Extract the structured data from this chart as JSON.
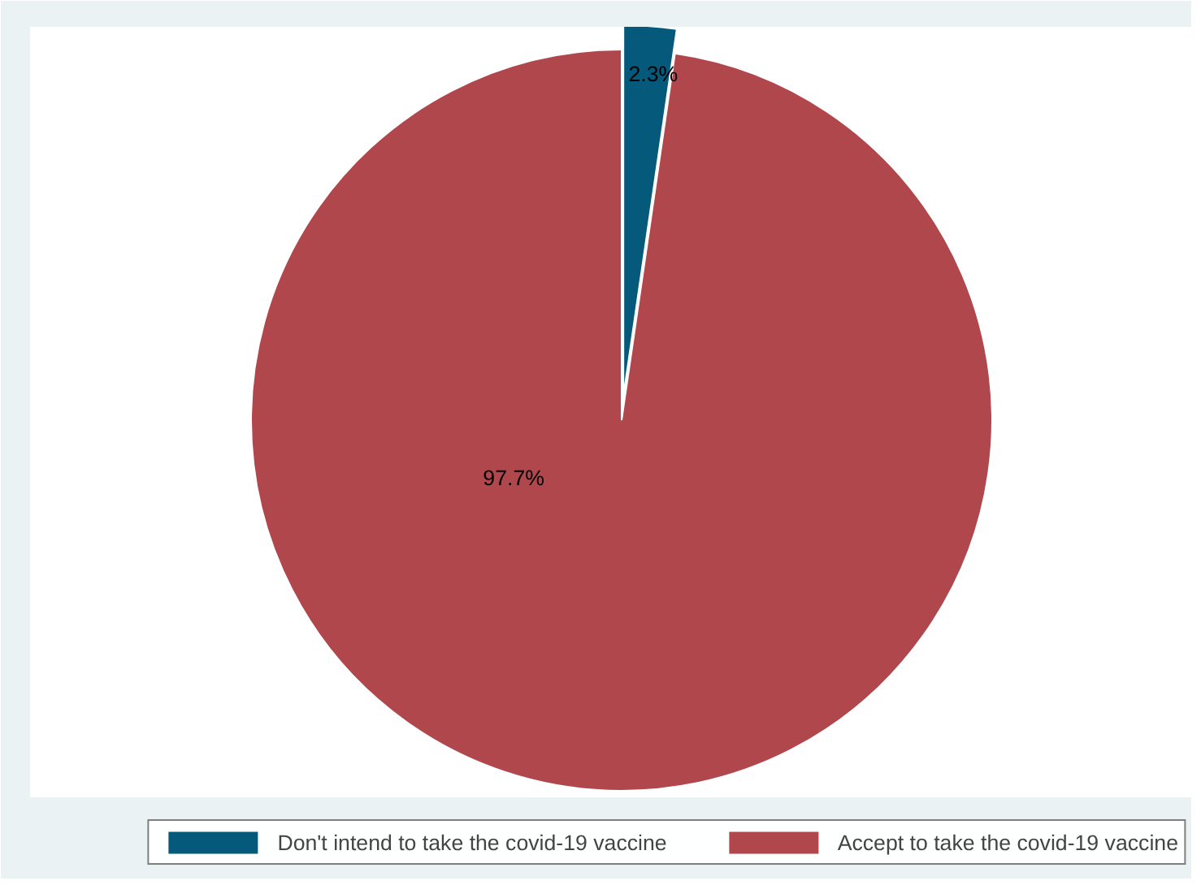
{
  "chart_data": {
    "type": "pie",
    "categories": [
      "Don't intend to take the covid-19 vaccine",
      "Accept to take the covid-19 vaccine"
    ],
    "values": [
      2.3,
      97.7
    ],
    "colors": [
      "#055a7c",
      "#b0474c"
    ],
    "value_labels": [
      "2.3%",
      "97.7%"
    ],
    "legend": "bottom"
  }
}
